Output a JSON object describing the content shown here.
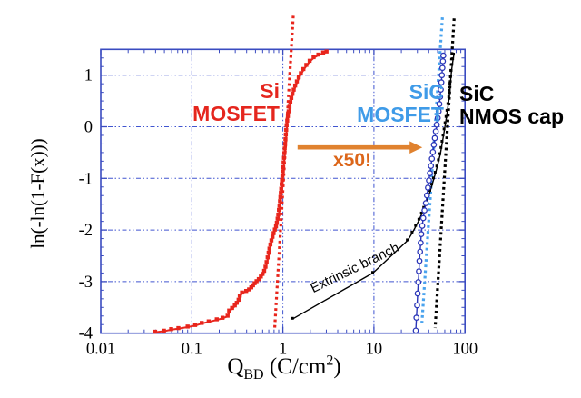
{
  "annotations": {
    "si_label": {
      "line1": "Si",
      "line2": "MOSFET",
      "color": "#e5261e"
    },
    "sic_mosfet_label": {
      "line1": "SiC",
      "line2": "MOSFET",
      "color": "#3f9be8"
    },
    "sic_nmos_label": {
      "line1": "SiC",
      "line2": "NMOS cap",
      "color": "#000000"
    },
    "x50_label": {
      "text": "x50!",
      "color": "#dc661a"
    },
    "extrinsic_label": {
      "text": "Extrinsic branch"
    }
  },
  "chart_data": {
    "type": "scatter",
    "title": "",
    "xlabel": "Q_BD (C/cm^2)",
    "xlabel_parts": {
      "main": "Q",
      "sub": "BD",
      "rest": " (C/cm",
      "sup": "2",
      "close": ")"
    },
    "ylabel": "ln(-ln(1-F(x)))",
    "xscale": "log",
    "xlim": [
      0.01,
      100
    ],
    "ylim": [
      -4.0,
      1.5
    ],
    "grid": {
      "x_values": [
        0.1,
        1,
        10
      ],
      "y_values": [
        1,
        0,
        -1,
        -2,
        -3
      ],
      "color": "#4055d0"
    },
    "frame_color": "#3a4bc0",
    "xticks": [
      {
        "v": 0.01,
        "label": "0.01"
      },
      {
        "v": 0.1,
        "label": "0.1"
      },
      {
        "v": 1,
        "label": "1"
      },
      {
        "v": 10,
        "label": "10"
      },
      {
        "v": 100,
        "label": "100"
      }
    ],
    "yticks": [
      {
        "v": 1,
        "label": "1"
      },
      {
        "v": 0,
        "label": "0"
      },
      {
        "v": -1,
        "label": "-1"
      },
      {
        "v": -2,
        "label": "-2"
      },
      {
        "v": -3,
        "label": "-3"
      },
      {
        "v": -4,
        "label": "-4"
      }
    ],
    "series": [
      {
        "name": "SiC NMOS cap",
        "color": "#000000",
        "marker": "square",
        "marker_size": 3.0,
        "line_width": 1.4,
        "points": [
          [
            1.29,
            -3.72
          ],
          [
            9.8,
            -2.83
          ],
          [
            23.5,
            -2.2
          ],
          [
            26.5,
            -2.05
          ],
          [
            29.0,
            -1.92
          ],
          [
            31.5,
            -1.8
          ],
          [
            33.6,
            -1.68
          ],
          [
            35.6,
            -1.57
          ],
          [
            37.6,
            -1.46
          ],
          [
            39.6,
            -1.35
          ],
          [
            41.6,
            -1.24
          ],
          [
            43.6,
            -1.12
          ],
          [
            45.6,
            -1.0
          ],
          [
            47.6,
            -0.89
          ],
          [
            49.6,
            -0.77
          ],
          [
            51.6,
            -0.65
          ],
          [
            53.6,
            -0.53
          ],
          [
            55.1,
            -0.41
          ],
          [
            56.6,
            -0.29
          ],
          [
            58.1,
            -0.17
          ],
          [
            59.6,
            -0.05
          ],
          [
            61.1,
            0.07
          ],
          [
            62.6,
            0.19
          ],
          [
            64.1,
            0.31
          ],
          [
            65.6,
            0.44
          ],
          [
            67.1,
            0.57
          ],
          [
            68.1,
            0.7
          ],
          [
            69.1,
            0.83
          ],
          [
            70.1,
            0.96
          ],
          [
            71.1,
            1.08
          ],
          [
            72.6,
            1.2
          ],
          [
            74.1,
            1.31
          ],
          [
            75.6,
            1.4
          ]
        ]
      },
      {
        "name": "SiC MOSFET",
        "color": "#2a35b8",
        "marker": "circle-open",
        "marker_size": 2.7,
        "line_width": 1.4,
        "points": [
          [
            28.8,
            -3.95
          ],
          [
            29.3,
            -3.7
          ],
          [
            29.8,
            -3.46
          ],
          [
            30.2,
            -3.23
          ],
          [
            30.7,
            -3.01
          ],
          [
            31.2,
            -2.8
          ],
          [
            31.6,
            -2.6
          ],
          [
            32.1,
            -2.42
          ],
          [
            32.6,
            -2.25
          ],
          [
            33.1,
            -2.08
          ],
          [
            33.9,
            -1.92
          ],
          [
            34.8,
            -1.77
          ],
          [
            35.9,
            -1.62
          ],
          [
            37.2,
            -1.48
          ],
          [
            38.2,
            -1.33
          ],
          [
            39.2,
            -1.18
          ],
          [
            40.2,
            -1.04
          ],
          [
            41.2,
            -0.9
          ],
          [
            42.3,
            -0.76
          ],
          [
            43.3,
            -0.62
          ],
          [
            44.4,
            -0.49
          ],
          [
            45.5,
            -0.35
          ],
          [
            46.6,
            -0.22
          ],
          [
            47.8,
            -0.09
          ],
          [
            49.0,
            0.04
          ],
          [
            50.2,
            0.17
          ],
          [
            51.4,
            0.3
          ],
          [
            52.4,
            0.44
          ],
          [
            53.3,
            0.58
          ],
          [
            54.2,
            0.72
          ],
          [
            55.0,
            0.86
          ],
          [
            55.8,
            1.0
          ],
          [
            56.5,
            1.14
          ],
          [
            57.2,
            1.27
          ],
          [
            57.8,
            1.38
          ]
        ]
      },
      {
        "name": "Si MOSFET",
        "color": "#e8251c",
        "marker": "square",
        "marker_size": 4.4,
        "line_width": 2.0,
        "points": [
          [
            0.04,
            -3.98
          ],
          [
            0.05,
            -3.96
          ],
          [
            0.06,
            -3.93
          ],
          [
            0.072,
            -3.91
          ],
          [
            0.091,
            -3.88
          ],
          [
            0.11,
            -3.85
          ],
          [
            0.13,
            -3.81
          ],
          [
            0.155,
            -3.78
          ],
          [
            0.19,
            -3.74
          ],
          [
            0.22,
            -3.71
          ],
          [
            0.25,
            -3.67
          ],
          [
            0.26,
            -3.57
          ],
          [
            0.28,
            -3.52
          ],
          [
            0.3,
            -3.47
          ],
          [
            0.315,
            -3.42
          ],
          [
            0.33,
            -3.36
          ],
          [
            0.34,
            -3.28
          ],
          [
            0.36,
            -3.22
          ],
          [
            0.4,
            -3.19
          ],
          [
            0.43,
            -3.16
          ],
          [
            0.455,
            -3.12
          ],
          [
            0.475,
            -3.08
          ],
          [
            0.495,
            -3.04
          ],
          [
            0.52,
            -3.0
          ],
          [
            0.55,
            -2.96
          ],
          [
            0.58,
            -2.91
          ],
          [
            0.605,
            -2.86
          ],
          [
            0.63,
            -2.8
          ],
          [
            0.652,
            -2.72
          ],
          [
            0.67,
            -2.63
          ],
          [
            0.688,
            -2.54
          ],
          [
            0.705,
            -2.45
          ],
          [
            0.72,
            -2.37
          ],
          [
            0.738,
            -2.29
          ],
          [
            0.757,
            -2.21
          ],
          [
            0.778,
            -2.14
          ],
          [
            0.8,
            -2.07
          ],
          [
            0.825,
            -2.0
          ],
          [
            0.85,
            -1.94
          ],
          [
            0.868,
            -1.87
          ],
          [
            0.885,
            -1.79
          ],
          [
            0.9,
            -1.71
          ],
          [
            0.915,
            -1.62
          ],
          [
            0.928,
            -1.54
          ],
          [
            0.94,
            -1.45
          ],
          [
            0.95,
            -1.37
          ],
          [
            0.96,
            -1.29
          ],
          [
            0.97,
            -1.21
          ],
          [
            0.98,
            -1.12
          ],
          [
            0.99,
            -1.04
          ],
          [
            1.0,
            -0.96
          ],
          [
            1.01,
            -0.87
          ],
          [
            1.02,
            -0.79
          ],
          [
            1.03,
            -0.7
          ],
          [
            1.04,
            -0.61
          ],
          [
            1.05,
            -0.52
          ],
          [
            1.06,
            -0.43
          ],
          [
            1.07,
            -0.34
          ],
          [
            1.08,
            -0.25
          ],
          [
            1.09,
            -0.16
          ],
          [
            1.1,
            -0.07
          ],
          [
            1.112,
            0.02
          ],
          [
            1.128,
            0.11
          ],
          [
            1.148,
            0.2
          ],
          [
            1.17,
            0.29
          ],
          [
            1.195,
            0.38
          ],
          [
            1.222,
            0.47
          ],
          [
            1.252,
            0.55
          ],
          [
            1.288,
            0.63
          ],
          [
            1.33,
            0.71
          ],
          [
            1.38,
            0.79
          ],
          [
            1.44,
            0.87
          ],
          [
            1.51,
            0.95
          ],
          [
            1.595,
            1.03
          ],
          [
            1.7,
            1.11
          ],
          [
            1.83,
            1.19
          ],
          [
            1.99,
            1.27
          ],
          [
            2.2,
            1.34
          ],
          [
            2.48,
            1.39
          ],
          [
            2.8,
            1.43
          ],
          [
            3.05,
            1.45
          ]
        ]
      }
    ],
    "fit_lines": [
      {
        "name": "Si fit",
        "color": "#e8251c",
        "from": [
          1.3,
          2.15
        ],
        "to": [
          0.81,
          -3.95
        ]
      },
      {
        "name": "SiC MOSFET fit",
        "color": "#4aa3ee",
        "from": [
          56.5,
          2.12
        ],
        "to": [
          33.5,
          -3.85
        ]
      },
      {
        "name": "SiC NMOS fit",
        "color": "#000000",
        "from": [
          76.0,
          2.1
        ],
        "to": [
          47.0,
          -3.9
        ]
      }
    ],
    "arrow": {
      "x1": 1.45,
      "x2": 34.0,
      "y": -0.4,
      "color": "#e0822f"
    }
  }
}
